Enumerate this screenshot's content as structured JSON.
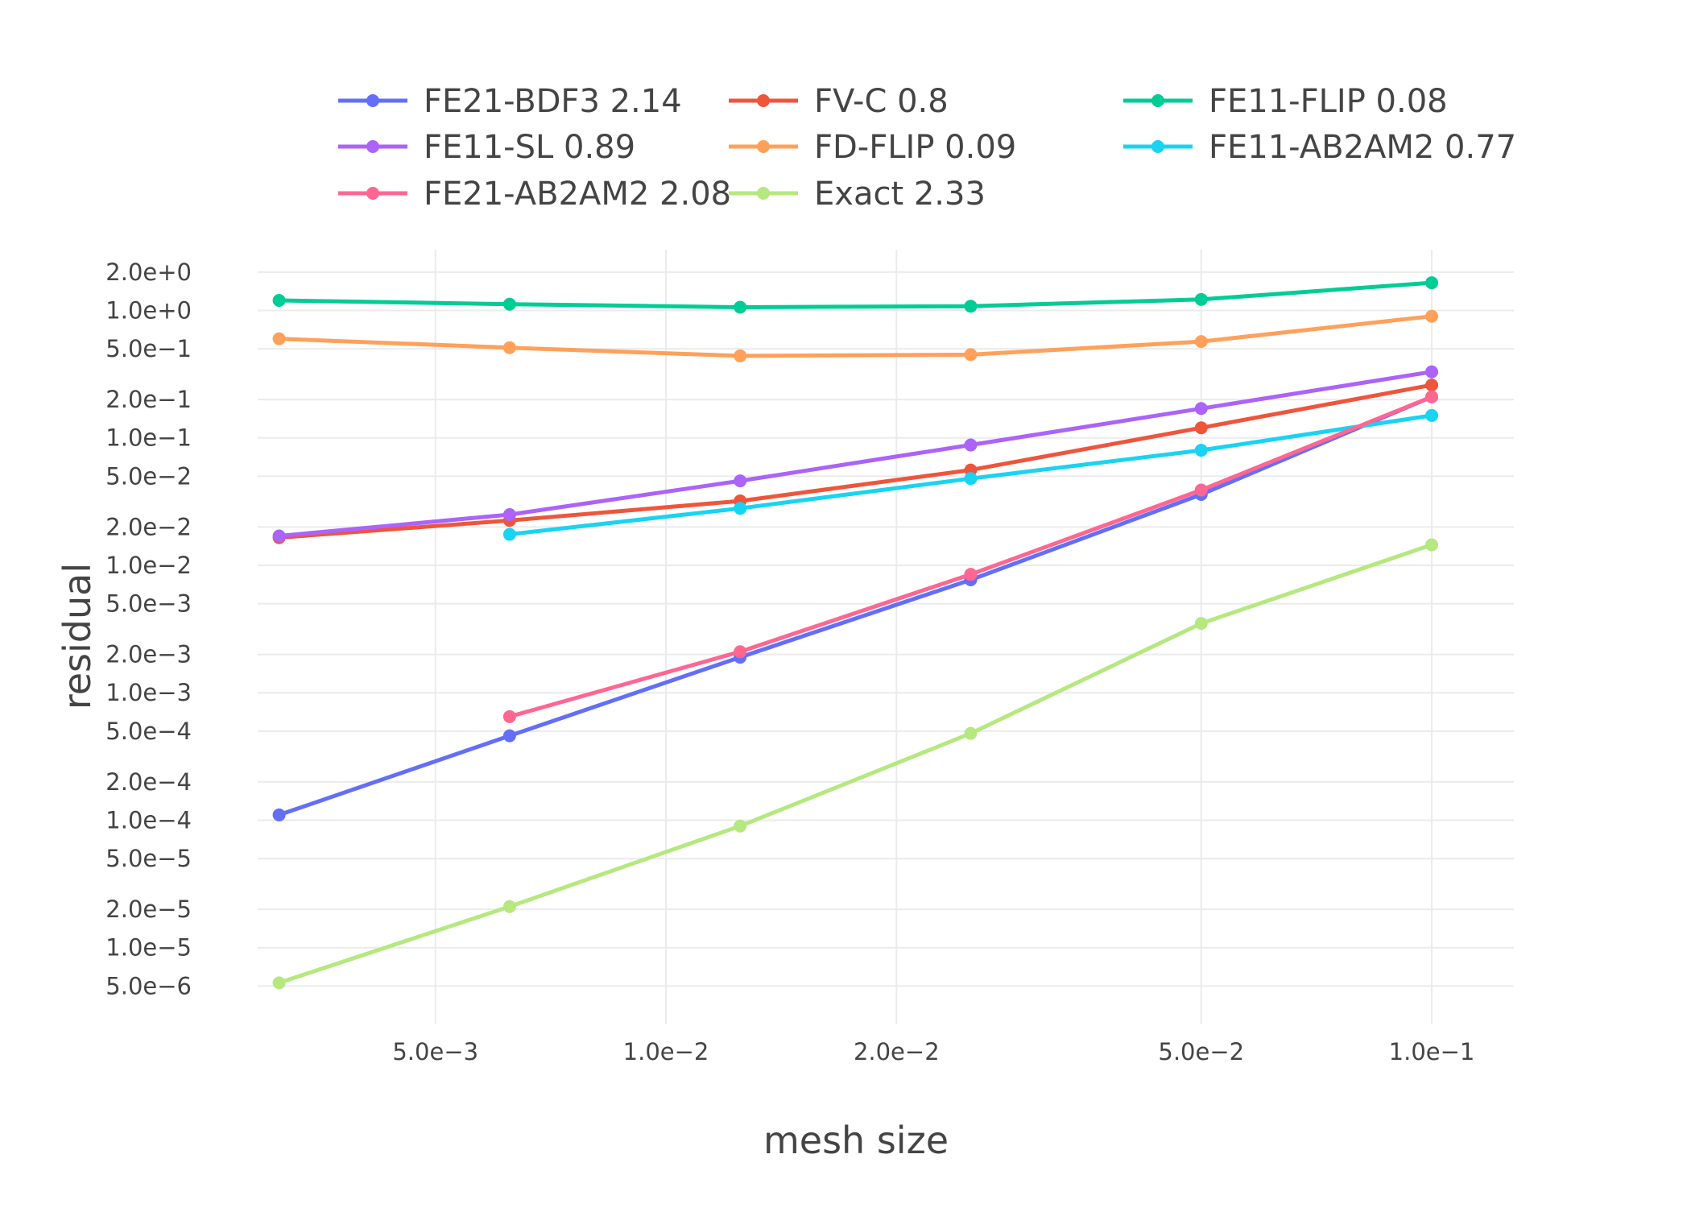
{
  "chart_data": {
    "type": "line",
    "xscale": "log",
    "yscale": "log",
    "xlabel": "mesh size",
    "ylabel": "residual",
    "xlim": [
      0.00293,
      0.128
    ],
    "ylim": [
      2.5e-06,
      3.0
    ],
    "grid": true,
    "legend_position": "top",
    "x_ticks": [
      {
        "value": 0.005,
        "label": "5.0e−3"
      },
      {
        "value": 0.01,
        "label": "1.0e−2"
      },
      {
        "value": 0.02,
        "label": "2.0e−2"
      },
      {
        "value": 0.05,
        "label": "5.0e−2"
      },
      {
        "value": 0.1,
        "label": "1.0e−1"
      }
    ],
    "y_ticks": [
      {
        "value": 2.0,
        "label": "2.0e+0"
      },
      {
        "value": 1.0,
        "label": "1.0e+0"
      },
      {
        "value": 0.5,
        "label": "5.0e−1"
      },
      {
        "value": 0.2,
        "label": "2.0e−1"
      },
      {
        "value": 0.1,
        "label": "1.0e−1"
      },
      {
        "value": 0.05,
        "label": "5.0e−2"
      },
      {
        "value": 0.02,
        "label": "2.0e−2"
      },
      {
        "value": 0.01,
        "label": "1.0e−2"
      },
      {
        "value": 0.005,
        "label": "5.0e−3"
      },
      {
        "value": 0.002,
        "label": "2.0e−3"
      },
      {
        "value": 0.001,
        "label": "1.0e−3"
      },
      {
        "value": 0.0005,
        "label": "5.0e−4"
      },
      {
        "value": 0.0002,
        "label": "2.0e−4"
      },
      {
        "value": 0.0001,
        "label": "1.0e−4"
      },
      {
        "value": 5e-05,
        "label": "5.0e−5"
      },
      {
        "value": 2e-05,
        "label": "2.0e−5"
      },
      {
        "value": 1e-05,
        "label": "1.0e−5"
      },
      {
        "value": 5e-06,
        "label": "5.0e−6"
      }
    ],
    "series": [
      {
        "name": "FE21-BDF3 2.14",
        "color": "#636efa",
        "x": [
          0.003125,
          0.00625,
          0.0125,
          0.025,
          0.05,
          0.1
        ],
        "y": [
          0.00011,
          0.00046,
          0.0019,
          0.0077,
          0.036,
          0.21
        ]
      },
      {
        "name": "FV-C 0.8",
        "color": "#ef553b",
        "x": [
          0.003125,
          0.00625,
          0.0125,
          0.025,
          0.05,
          0.1
        ],
        "y": [
          0.0165,
          0.0225,
          0.032,
          0.056,
          0.12,
          0.26
        ]
      },
      {
        "name": "FE11-FLIP 0.08",
        "color": "#00cc96",
        "x": [
          0.003125,
          0.00625,
          0.0125,
          0.025,
          0.05,
          0.1
        ],
        "y": [
          1.2,
          1.12,
          1.06,
          1.08,
          1.22,
          1.65
        ]
      },
      {
        "name": "FE11-SL 0.89",
        "color": "#ab63fa",
        "x": [
          0.003125,
          0.00625,
          0.0125,
          0.025,
          0.05,
          0.1
        ],
        "y": [
          0.017,
          0.025,
          0.046,
          0.088,
          0.17,
          0.33
        ]
      },
      {
        "name": "FD-FLIP 0.09",
        "color": "#ffa15a",
        "x": [
          0.003125,
          0.00625,
          0.0125,
          0.025,
          0.05,
          0.1
        ],
        "y": [
          0.6,
          0.51,
          0.44,
          0.45,
          0.57,
          0.9
        ]
      },
      {
        "name": "FE11-AB2AM2 0.77",
        "color": "#19d3f3",
        "x": [
          0.00625,
          0.0125,
          0.025,
          0.05,
          0.1
        ],
        "y": [
          0.0175,
          0.028,
          0.048,
          0.08,
          0.15
        ]
      },
      {
        "name": "FE21-AB2AM2 2.08",
        "color": "#ff6692",
        "x": [
          0.00625,
          0.0125,
          0.025,
          0.05,
          0.1
        ],
        "y": [
          0.00065,
          0.0021,
          0.0085,
          0.039,
          0.21
        ]
      },
      {
        "name": "Exact 2.33",
        "color": "#b6e880",
        "x": [
          0.003125,
          0.00625,
          0.0125,
          0.025,
          0.05,
          0.1
        ],
        "y": [
          5.3e-06,
          2.1e-05,
          9e-05,
          0.00048,
          0.0035,
          0.0145
        ]
      }
    ]
  }
}
